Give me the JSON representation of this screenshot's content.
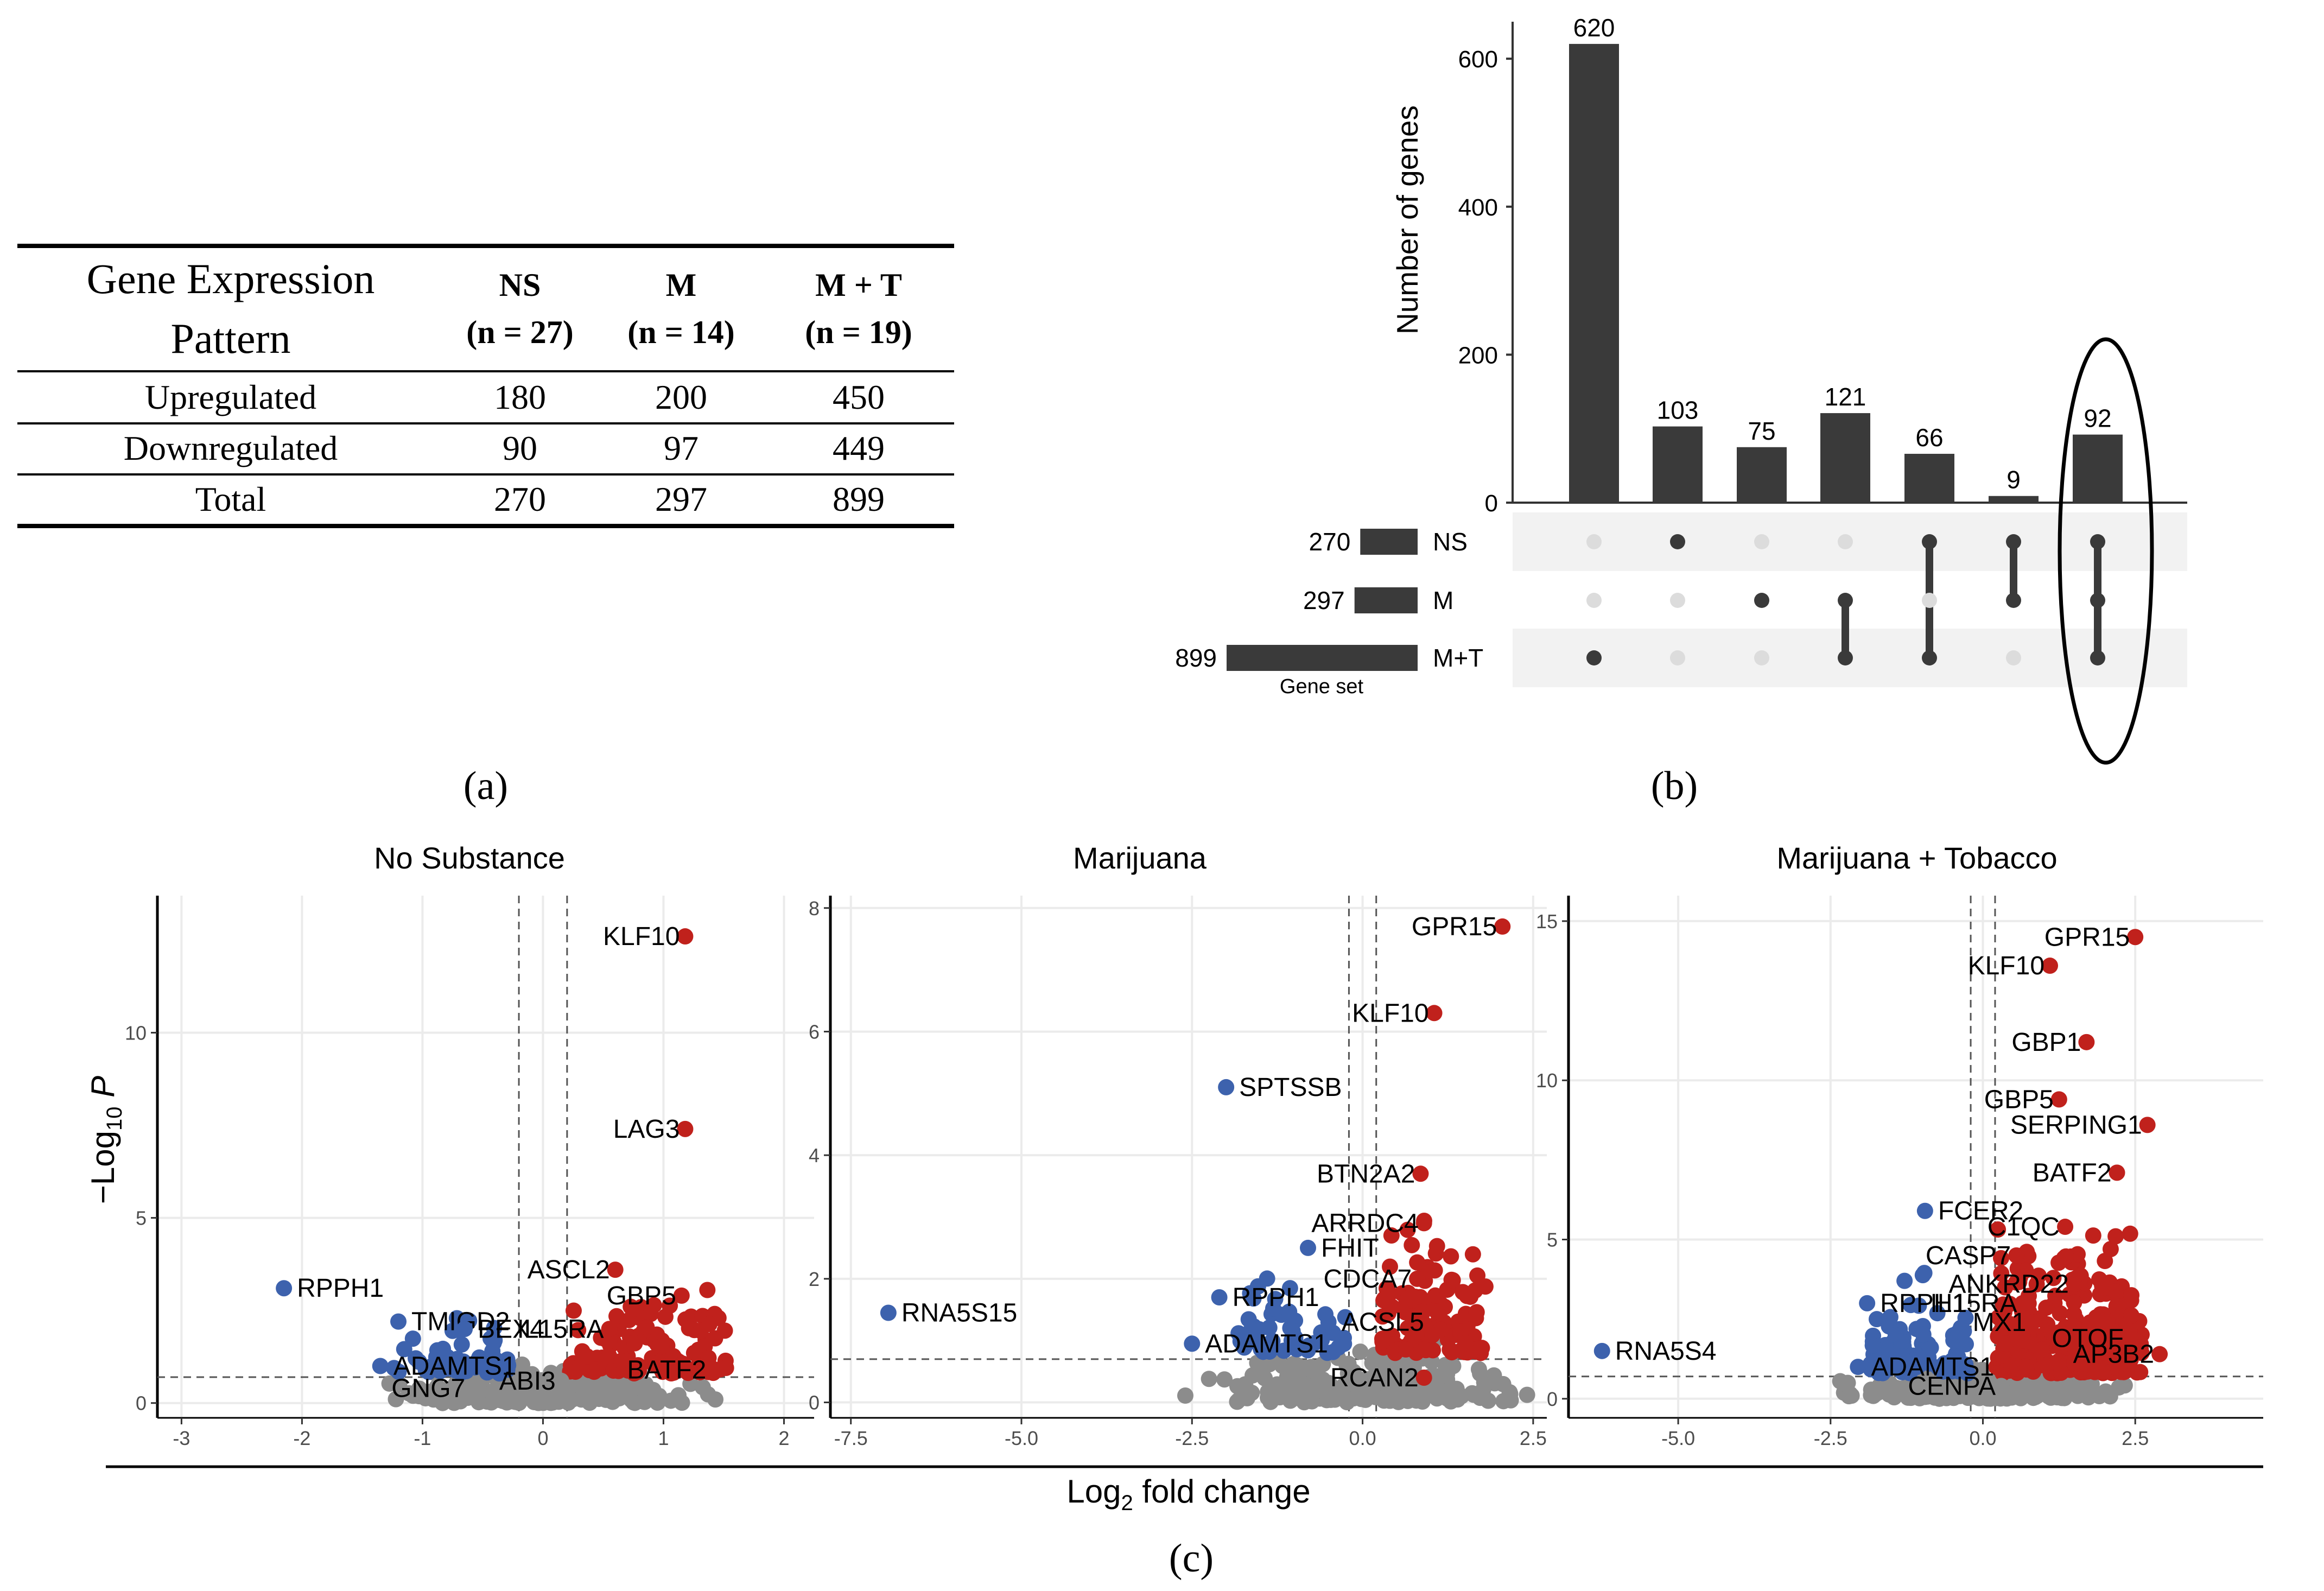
{
  "panel_labels": {
    "a": "(a)",
    "b": "(b)",
    "c": "(c)"
  },
  "table": {
    "header_line1": "Gene Expression",
    "header_line2": "Pattern",
    "columns": [
      {
        "name": "NS",
        "n": "(n = 27)"
      },
      {
        "name": "M",
        "n": "(n = 14)"
      },
      {
        "name": "M + T",
        "n": "(n = 19)"
      }
    ],
    "rows": [
      {
        "label": "Upregulated",
        "values": [
          "180",
          "200",
          "450"
        ]
      },
      {
        "label": "Downregulated",
        "values": [
          "90",
          "97",
          "449"
        ]
      },
      {
        "label": "Total",
        "values": [
          "270",
          "297",
          "899"
        ]
      }
    ]
  },
  "colors": {
    "bar": "#3a3a3a",
    "up": "#c0211c",
    "down": "#3d62ad",
    "ns": "#8c8c8c",
    "dot_off": "#dcdcdc",
    "band": "#f2f2f2",
    "grid": "#ebebeb"
  },
  "chart_data": [
    {
      "type": "bar",
      "subtype": "upset",
      "ylabel": "Number of genes",
      "ylim": [
        0,
        650
      ],
      "yticks": [
        "0",
        "200",
        "400",
        "600"
      ],
      "intersections": [
        {
          "label": "620",
          "value": 620,
          "members": [
            "M+T"
          ]
        },
        {
          "label": "103",
          "value": 103,
          "members": [
            "NS"
          ]
        },
        {
          "label": "75",
          "value": 75,
          "members": [
            "M"
          ]
        },
        {
          "label": "121",
          "value": 121,
          "members": [
            "M",
            "M+T"
          ]
        },
        {
          "label": "66",
          "value": 66,
          "members": [
            "NS",
            "M+T"
          ]
        },
        {
          "label": "9",
          "value": 9,
          "members": [
            "NS",
            "M"
          ]
        },
        {
          "label": "92",
          "value": 92,
          "members": [
            "NS",
            "M",
            "M+T"
          ],
          "highlighted": true
        }
      ],
      "sets": [
        {
          "name": "NS",
          "size": 270,
          "size_label": "270"
        },
        {
          "name": "M",
          "size": 297,
          "size_label": "297"
        },
        {
          "name": "M+T",
          "size": 899,
          "size_label": "899"
        }
      ],
      "set_axis_label": "Gene set"
    },
    {
      "type": "scatter",
      "subtype": "volcano",
      "title": "No Substance",
      "xlim": [
        -3.2,
        2.25
      ],
      "ylim": [
        -0.4,
        13.7
      ],
      "xticks": [
        "-3",
        "-2",
        "-1",
        "0",
        "1",
        "2"
      ],
      "yticks": [
        "0",
        "5",
        "10"
      ],
      "fc_cutoff": 0.2,
      "p_cutoff": 0.7,
      "labels": [
        {
          "text": "KLF10",
          "x": 1.18,
          "y": 12.6,
          "dir": "up"
        },
        {
          "text": "LAG3",
          "x": 1.18,
          "y": 7.4,
          "dir": "up"
        },
        {
          "text": "ASCL2",
          "x": 0.6,
          "y": 3.6,
          "dir": "up"
        },
        {
          "text": "GBP5",
          "x": 1.15,
          "y": 2.9,
          "dir": "up"
        },
        {
          "text": "IL15RA",
          "x": 0.55,
          "y": 2.0,
          "dir": "up"
        },
        {
          "text": "BATF2",
          "x": 1.4,
          "y": 0.9,
          "dir": "up"
        },
        {
          "text": "ABI3",
          "x": 0.15,
          "y": 0.6,
          "dir": "ns"
        },
        {
          "text": "GNG7",
          "x": -0.6,
          "y": 0.4,
          "dir": "ns"
        },
        {
          "text": "RPPH1",
          "x": -2.15,
          "y": 3.1,
          "dir": "down"
        },
        {
          "text": "TMIGD2",
          "x": -1.2,
          "y": 2.2,
          "dir": "down"
        },
        {
          "text": "BEX4",
          "x": -0.65,
          "y": 2.0,
          "dir": "down"
        },
        {
          "text": "ADAMTS1",
          "x": -1.35,
          "y": 1.0,
          "dir": "down"
        }
      ]
    },
    {
      "type": "scatter",
      "subtype": "volcano",
      "title": "Marijuana",
      "xlim": [
        -7.8,
        2.7
      ],
      "ylim": [
        -0.25,
        8.2
      ],
      "xticks": [
        "-7.5",
        "-5.0",
        "-2.5",
        "0.0",
        "2.5"
      ],
      "yticks": [
        "0",
        "2",
        "4",
        "6",
        "8"
      ],
      "fc_cutoff": 0.2,
      "p_cutoff": 0.7,
      "labels": [
        {
          "text": "GPR15",
          "x": 2.05,
          "y": 7.7,
          "dir": "up"
        },
        {
          "text": "KLF10",
          "x": 1.05,
          "y": 6.3,
          "dir": "up"
        },
        {
          "text": "BTN2A2",
          "x": 0.85,
          "y": 3.7,
          "dir": "up"
        },
        {
          "text": "ARRDC4",
          "x": 0.9,
          "y": 2.9,
          "dir": "up"
        },
        {
          "text": "CDCA7",
          "x": 0.8,
          "y": 2.0,
          "dir": "up"
        },
        {
          "text": "RCAN2",
          "x": 0.9,
          "y": 0.4,
          "dir": "up"
        },
        {
          "text": "SPTSSB",
          "x": -2.0,
          "y": 5.1,
          "dir": "down"
        },
        {
          "text": "FHIT",
          "x": -0.8,
          "y": 2.5,
          "dir": "down"
        },
        {
          "text": "RPPH1",
          "x": -2.1,
          "y": 1.7,
          "dir": "down"
        },
        {
          "text": "ACSL5",
          "x": -0.5,
          "y": 1.3,
          "dir": "down"
        },
        {
          "text": "ADAMTS1",
          "x": -2.5,
          "y": 0.95,
          "dir": "down"
        },
        {
          "text": "RNA5S15",
          "x": -6.95,
          "y": 1.45,
          "dir": "down"
        }
      ]
    },
    {
      "type": "scatter",
      "subtype": "volcano",
      "title": "Marijuana + Tobacco",
      "xlim": [
        -6.8,
        4.6
      ],
      "ylim": [
        -0.6,
        15.8
      ],
      "xticks": [
        "-5.0",
        "-2.5",
        "0.0",
        "2.5"
      ],
      "yticks": [
        "0",
        "5",
        "10",
        "15"
      ],
      "fc_cutoff": 0.2,
      "p_cutoff": 0.7,
      "labels": [
        {
          "text": "GPR15",
          "x": 2.5,
          "y": 14.5,
          "dir": "up"
        },
        {
          "text": "KLF10",
          "x": 1.1,
          "y": 13.6,
          "dir": "up"
        },
        {
          "text": "GBP1",
          "x": 1.7,
          "y": 11.2,
          "dir": "up"
        },
        {
          "text": "GBP5",
          "x": 1.25,
          "y": 9.4,
          "dir": "up"
        },
        {
          "text": "SERPING1",
          "x": 2.7,
          "y": 8.6,
          "dir": "up"
        },
        {
          "text": "BATF2",
          "x": 2.2,
          "y": 7.1,
          "dir": "up"
        },
        {
          "text": "C1QC",
          "x": 1.35,
          "y": 5.4,
          "dir": "up"
        },
        {
          "text": "CASP7",
          "x": 0.55,
          "y": 4.5,
          "dir": "up"
        },
        {
          "text": "ANKRD22",
          "x": 1.5,
          "y": 3.6,
          "dir": "up"
        },
        {
          "text": "IL15RA",
          "x": 0.65,
          "y": 3.0,
          "dir": "up"
        },
        {
          "text": "MX1",
          "x": 0.8,
          "y": 2.4,
          "dir": "up"
        },
        {
          "text": "OTOF",
          "x": 2.4,
          "y": 1.9,
          "dir": "up"
        },
        {
          "text": "AP3B2",
          "x": 2.9,
          "y": 1.4,
          "dir": "up"
        },
        {
          "text": "CENPA",
          "x": 0.3,
          "y": 0.4,
          "dir": "ns"
        },
        {
          "text": "FCER2",
          "x": -0.95,
          "y": 5.9,
          "dir": "down"
        },
        {
          "text": "RPPH1",
          "x": -1.9,
          "y": 3.0,
          "dir": "down"
        },
        {
          "text": "ADAMTS1",
          "x": -2.05,
          "y": 1.0,
          "dir": "down"
        },
        {
          "text": "RNA5S4",
          "x": -6.25,
          "y": 1.5,
          "dir": "down"
        }
      ]
    }
  ],
  "volcano_axes": {
    "xlabel": "Log2 fold change",
    "ylabel": "−Log10 P"
  }
}
